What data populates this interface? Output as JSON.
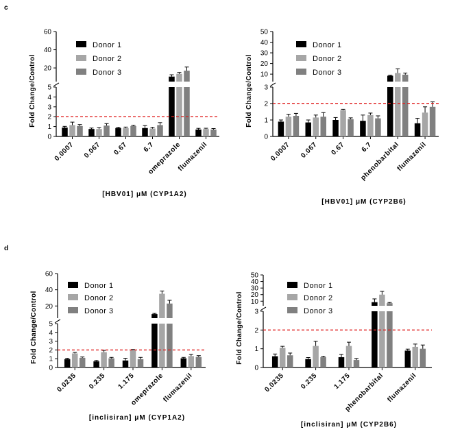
{
  "panel_labels": [
    "c",
    "d"
  ],
  "chart_data": [
    {
      "type": "bar",
      "ylabel": "Fold Change/Control",
      "xlabel": "[HBV01] μM  (CYP1A2)",
      "categories": [
        "0.0007",
        "0.067",
        "0.67",
        "6.7",
        "omeprazole",
        "flumazenil"
      ],
      "series": [
        {
          "name": "Donor 1",
          "color": "#000000",
          "values": [
            0.9,
            0.75,
            0.85,
            0.85,
            10.5,
            0.7
          ],
          "errors": [
            0.12,
            0.1,
            0.08,
            0.25,
            2,
            0.12
          ]
        },
        {
          "name": "Donor 2",
          "color": "#a6a6a6",
          "values": [
            1.15,
            0.75,
            0.85,
            0.8,
            13.5,
            0.75
          ],
          "errors": [
            0.3,
            0.15,
            0.1,
            0.12,
            1.5,
            0.08
          ]
        },
        {
          "name": "Donor 3",
          "color": "#808080",
          "values": [
            1.05,
            1.1,
            1.05,
            1.15,
            17,
            0.7
          ],
          "errors": [
            0.15,
            0.2,
            0.08,
            0.25,
            4,
            0.1
          ]
        }
      ],
      "lower_ticks": [
        0,
        1,
        2,
        3,
        4,
        5
      ],
      "upper_ticks": [
        20,
        40,
        60
      ],
      "threshold": 2
    },
    {
      "type": "bar",
      "ylabel": "Fold Change/Control",
      "xlabel": "[HBV01] μM  (CYP2B6)",
      "categories": [
        "0.0007",
        "0.067",
        "0.67",
        "6.7",
        "phenobarbital",
        "flumazenil"
      ],
      "series": [
        {
          "name": "Donor 1",
          "color": "#000000",
          "values": [
            0.9,
            0.85,
            1.0,
            0.95,
            8.5,
            0.8
          ],
          "errors": [
            0.1,
            0.15,
            0.15,
            0.35,
            0.5,
            0.3
          ]
        },
        {
          "name": "Donor 2",
          "color": "#a6a6a6",
          "values": [
            1.2,
            1.15,
            1.6,
            1.3,
            11,
            1.45
          ],
          "errors": [
            0.15,
            0.15,
            0.05,
            0.12,
            4,
            0.35
          ]
        },
        {
          "name": "Donor 3",
          "color": "#808080",
          "values": [
            1.25,
            1.2,
            1.05,
            1.1,
            9.5,
            1.8
          ],
          "errors": [
            0.15,
            0.25,
            0.08,
            0.15,
            1.5,
            0.3
          ]
        }
      ],
      "lower_ticks": [
        0,
        1,
        2,
        3
      ],
      "upper_ticks": [
        10,
        20,
        30,
        40,
        50
      ],
      "threshold": 2
    },
    {
      "type": "bar",
      "ylabel": "Fold Change/Control",
      "xlabel": "[inclisiran] μM  (CYP1A2)",
      "categories": [
        "0.0235",
        "0.235",
        "1.175",
        "omeprazole",
        "flumazenil"
      ],
      "series": [
        {
          "name": "Donor 1",
          "color": "#000000",
          "values": [
            0.95,
            0.7,
            0.8,
            10,
            1.05
          ],
          "errors": [
            0.1,
            0.1,
            0.25,
            0.8,
            0.1
          ]
        },
        {
          "name": "Donor 2",
          "color": "#a6a6a6",
          "values": [
            1.6,
            1.75,
            1.95,
            35,
            1.3
          ],
          "errors": [
            0.12,
            0.2,
            0.1,
            3.5,
            0.2
          ]
        },
        {
          "name": "Donor 3",
          "color": "#808080",
          "values": [
            1.1,
            1.05,
            0.95,
            23,
            1.2
          ],
          "errors": [
            0.1,
            0.1,
            0.2,
            4,
            0.15
          ]
        }
      ],
      "lower_ticks": [
        0,
        1,
        2,
        3,
        4,
        5
      ],
      "upper_ticks": [
        20,
        40,
        60
      ],
      "threshold": 2
    },
    {
      "type": "bar",
      "ylabel": "Fold Change/Control",
      "xlabel": "[inclisiran] μM  (CYP2B6)",
      "categories": [
        "0.0235",
        "0.235",
        "1.175",
        "phenobarbital",
        "flumazenil"
      ],
      "series": [
        {
          "name": "Donor 1",
          "color": "#000000",
          "values": [
            0.6,
            0.45,
            0.55,
            8.5,
            0.9
          ],
          "errors": [
            0.12,
            0.08,
            0.15,
            5,
            0.08
          ]
        },
        {
          "name": "Donor 2",
          "color": "#a6a6a6",
          "values": [
            1.05,
            1.15,
            1.15,
            20,
            1.1
          ],
          "errors": [
            0.08,
            0.25,
            0.2,
            5,
            0.15
          ]
        },
        {
          "name": "Donor 3",
          "color": "#808080",
          "values": [
            0.65,
            0.55,
            0.4,
            7,
            1.0
          ],
          "errors": [
            0.12,
            0.05,
            0.08,
            1,
            0.2
          ]
        }
      ],
      "lower_ticks": [
        0,
        1,
        2,
        3
      ],
      "upper_ticks": [
        10,
        20,
        30,
        40,
        50
      ],
      "threshold": 2
    }
  ]
}
